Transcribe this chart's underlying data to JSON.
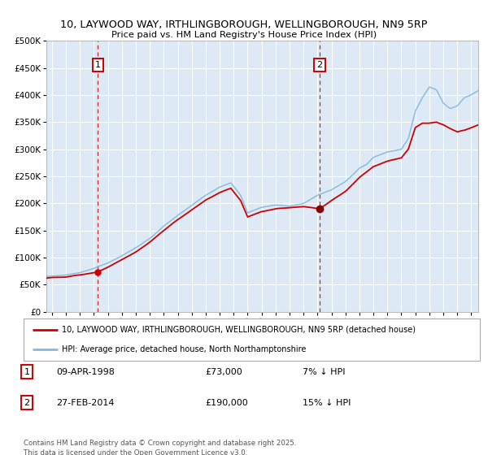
{
  "title1": "10, LAYWOOD WAY, IRTHLINGBOROUGH, WELLINGBOROUGH, NN9 5RP",
  "title2": "Price paid vs. HM Land Registry's House Price Index (HPI)",
  "legend_line1": "10, LAYWOOD WAY, IRTHLINGBOROUGH, WELLINGBOROUGH, NN9 5RP (detached house)",
  "legend_line2": "HPI: Average price, detached house, North Northamptonshire",
  "annotation1_date": "09-APR-1998",
  "annotation1_price": "£73,000",
  "annotation1_hpi": "7% ↓ HPI",
  "annotation2_date": "27-FEB-2014",
  "annotation2_price": "£190,000",
  "annotation2_hpi": "15% ↓ HPI",
  "footer": "Contains HM Land Registry data © Crown copyright and database right 2025.\nThis data is licensed under the Open Government Licence v3.0.",
  "red_line_color": "#cc0000",
  "blue_line_color": "#85b8dc",
  "bg_color": "#ddeaf5",
  "grid_color": "#ffffff",
  "vline1_color": "#cc0000",
  "vline2_color": "#cc0000",
  "marker1_year": 1998.28,
  "marker1_value": 73000,
  "marker2_year": 2014.15,
  "marker2_value": 190000,
  "ylim": [
    0,
    500000
  ],
  "xlim_start": 1994.6,
  "xlim_end": 2025.5,
  "hpi_anchors_x": [
    1994.6,
    1995,
    1996,
    1997,
    1998,
    1999,
    2000,
    2001,
    2002,
    2003,
    2004,
    2005,
    2006,
    2007,
    2007.8,
    2008.5,
    2009,
    2009.5,
    2010,
    2011,
    2012,
    2013,
    2014,
    2015,
    2016,
    2017,
    2017.5,
    2018,
    2019,
    2020,
    2020.5,
    2021,
    2021.5,
    2022,
    2022.5,
    2023,
    2023.5,
    2024,
    2024.5,
    2025,
    2025.5
  ],
  "hpi_anchors_y": [
    65000,
    66000,
    68000,
    72000,
    80000,
    90000,
    103000,
    118000,
    135000,
    158000,
    178000,
    196000,
    215000,
    230000,
    238000,
    215000,
    182000,
    188000,
    193000,
    197000,
    195000,
    200000,
    215000,
    225000,
    240000,
    265000,
    272000,
    285000,
    295000,
    300000,
    320000,
    370000,
    395000,
    415000,
    410000,
    385000,
    375000,
    380000,
    395000,
    400000,
    408000
  ],
  "pp_anchors_x": [
    1994.6,
    1995,
    1996,
    1997,
    1998.28,
    1999,
    2000,
    2001,
    2002,
    2003,
    2004,
    2005,
    2006,
    2007,
    2007.8,
    2008.5,
    2009,
    2009.5,
    2010,
    2011,
    2012,
    2013,
    2014.15,
    2015,
    2016,
    2017,
    2018,
    2019,
    2020,
    2020.5,
    2021,
    2021.5,
    2022,
    2022.5,
    2023,
    2023.5,
    2024,
    2024.5,
    2025,
    2025.5
  ],
  "pp_anchors_y": [
    62000,
    63000,
    64000,
    68000,
    73000,
    82000,
    96000,
    110000,
    128000,
    150000,
    170000,
    188000,
    206000,
    220000,
    228000,
    205000,
    175000,
    180000,
    185000,
    190000,
    192000,
    194000,
    190000,
    205000,
    222000,
    248000,
    268000,
    278000,
    284000,
    300000,
    340000,
    348000,
    348000,
    350000,
    345000,
    338000,
    332000,
    335000,
    340000,
    345000
  ]
}
